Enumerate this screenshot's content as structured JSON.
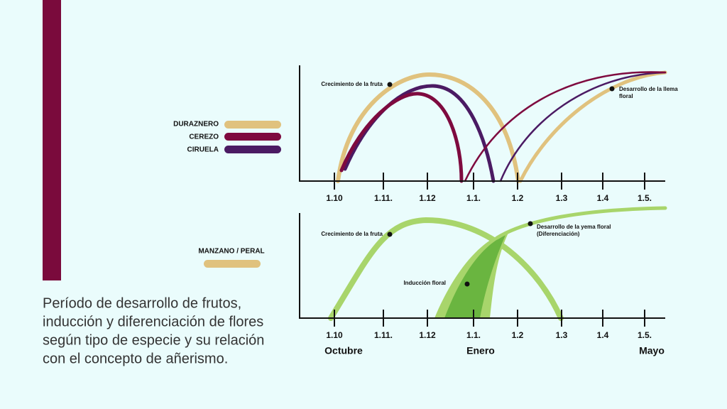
{
  "legend_top": [
    "DURAZNERO",
    "CEREZO",
    "CIRUELA"
  ],
  "legend_bottom": [
    "MANZANO / PERAL"
  ],
  "top_chart": {
    "annotations": [
      "Crecimiento de la fruta",
      "Desarrollo de la llema",
      "floral"
    ],
    "x_labels": [
      "1.10",
      "1.11.",
      "1.12",
      "1.1.",
      "1.2",
      "1.3",
      "1.4",
      "1.5."
    ]
  },
  "bottom_chart": {
    "annotations": [
      "Crecimiento de la fruta",
      "Desarrollo de la yema floral",
      "(Diferenciación)",
      "Inducción floral"
    ],
    "x_labels": [
      "1.10",
      "1.11.",
      "1.12",
      "1.1.",
      "1.2",
      "1.3",
      "1.4",
      "1.5."
    ]
  },
  "months": [
    "Octubre",
    "Enero",
    "Mayo"
  ],
  "caption": [
    "Período de desarrollo de frutos,",
    "inducción y diferenciación de flores",
    "según tipo de especie y su relación",
    "con el concepto de añerismo."
  ]
}
